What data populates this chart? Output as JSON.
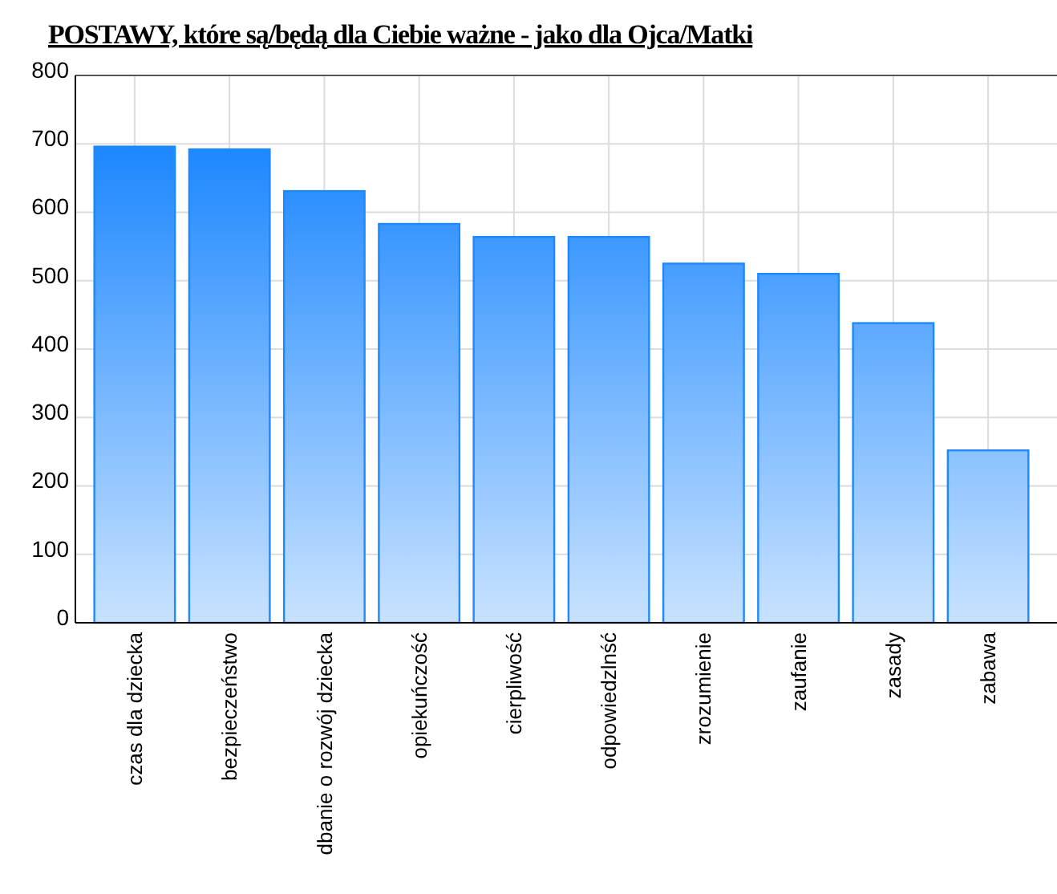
{
  "chart_data": {
    "type": "bar",
    "title": "POSTAWY, które są/będą dla Ciebie ważne - jako dla Ojca/Matki",
    "categories": [
      "czas dla dziecka",
      "bezpieczeństwo",
      "dbanie o rozwój dziecka",
      "opiekuńczość",
      "cierpliwość",
      "odpowiedzlnść",
      "zrozumienie",
      "zaufanie",
      "zasady",
      "zabawa"
    ],
    "values": [
      696,
      692,
      631,
      583,
      564,
      564,
      525,
      510,
      438,
      252
    ],
    "color": "#1e88ff",
    "ylim": [
      0,
      800
    ],
    "yticks": [
      0,
      100,
      200,
      300,
      400,
      500,
      600,
      700,
      800
    ],
    "grid": true
  }
}
